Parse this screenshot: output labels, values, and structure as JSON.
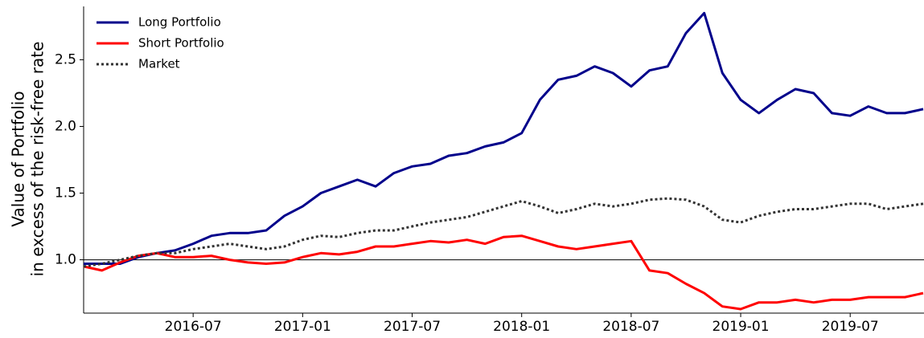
{
  "chart_data": {
    "type": "line",
    "ylabel": [
      "Value of Portfolio",
      "in excess of the risk-free rate"
    ],
    "x": [
      "2016-01",
      "2016-02",
      "2016-03",
      "2016-04",
      "2016-05",
      "2016-06",
      "2016-07",
      "2016-08",
      "2016-09",
      "2016-10",
      "2016-11",
      "2016-12",
      "2017-01",
      "2017-02",
      "2017-03",
      "2017-04",
      "2017-05",
      "2017-06",
      "2017-07",
      "2017-08",
      "2017-09",
      "2017-10",
      "2017-11",
      "2017-12",
      "2018-01",
      "2018-02",
      "2018-03",
      "2018-04",
      "2018-05",
      "2018-06",
      "2018-07",
      "2018-08",
      "2018-09",
      "2018-10",
      "2018-11",
      "2018-12",
      "2019-01",
      "2019-02",
      "2019-03",
      "2019-04",
      "2019-05",
      "2019-06",
      "2019-07",
      "2019-08",
      "2019-09",
      "2019-10",
      "2019-11"
    ],
    "series": [
      {
        "name": "Long Portfolio",
        "color": "#00008b",
        "style": "solid",
        "values": [
          0.97,
          0.97,
          0.97,
          1.02,
          1.05,
          1.07,
          1.12,
          1.18,
          1.2,
          1.2,
          1.22,
          1.33,
          1.4,
          1.5,
          1.55,
          1.6,
          1.55,
          1.65,
          1.7,
          1.72,
          1.78,
          1.8,
          1.85,
          1.88,
          1.95,
          2.2,
          2.35,
          2.38,
          2.45,
          2.4,
          2.3,
          2.42,
          2.45,
          2.7,
          2.85,
          2.4,
          2.2,
          2.1,
          2.2,
          2.28,
          2.25,
          2.1,
          2.08,
          2.15,
          2.1,
          2.1,
          2.13
        ]
      },
      {
        "name": "Short Portfolio",
        "color": "#ff0000",
        "style": "solid",
        "values": [
          0.95,
          0.92,
          0.98,
          1.03,
          1.05,
          1.02,
          1.02,
          1.03,
          1.0,
          0.98,
          0.97,
          0.98,
          1.02,
          1.05,
          1.04,
          1.06,
          1.1,
          1.1,
          1.12,
          1.14,
          1.13,
          1.15,
          1.12,
          1.17,
          1.18,
          1.14,
          1.1,
          1.08,
          1.1,
          1.12,
          1.14,
          0.92,
          0.9,
          0.82,
          0.75,
          0.65,
          0.63,
          0.68,
          0.68,
          0.7,
          0.68,
          0.7,
          0.7,
          0.72,
          0.72,
          0.72,
          0.75
        ]
      },
      {
        "name": "Market",
        "color": "#333333",
        "style": "dotted",
        "values": [
          0.95,
          0.97,
          1.0,
          1.03,
          1.05,
          1.05,
          1.08,
          1.1,
          1.12,
          1.1,
          1.08,
          1.1,
          1.15,
          1.18,
          1.17,
          1.2,
          1.22,
          1.22,
          1.25,
          1.28,
          1.3,
          1.32,
          1.36,
          1.4,
          1.44,
          1.4,
          1.35,
          1.38,
          1.42,
          1.4,
          1.42,
          1.45,
          1.46,
          1.45,
          1.4,
          1.3,
          1.28,
          1.33,
          1.36,
          1.38,
          1.38,
          1.4,
          1.42,
          1.42,
          1.38,
          1.4,
          1.42
        ]
      }
    ],
    "xlim": [
      "2016-01",
      "2019-11"
    ],
    "xticks": [
      "2016-07",
      "2017-01",
      "2017-07",
      "2018-01",
      "2018-07",
      "2019-01",
      "2019-07"
    ],
    "ylim": [
      0.6,
      2.9
    ],
    "yticks": [
      {
        "value": 1.0,
        "label": "1.0"
      },
      {
        "value": 1.5,
        "label": "1.5"
      },
      {
        "value": 2.0,
        "label": "2.0"
      },
      {
        "value": 2.5,
        "label": "2.5"
      }
    ],
    "reference_line": 1.0,
    "legend": "upper-left"
  }
}
